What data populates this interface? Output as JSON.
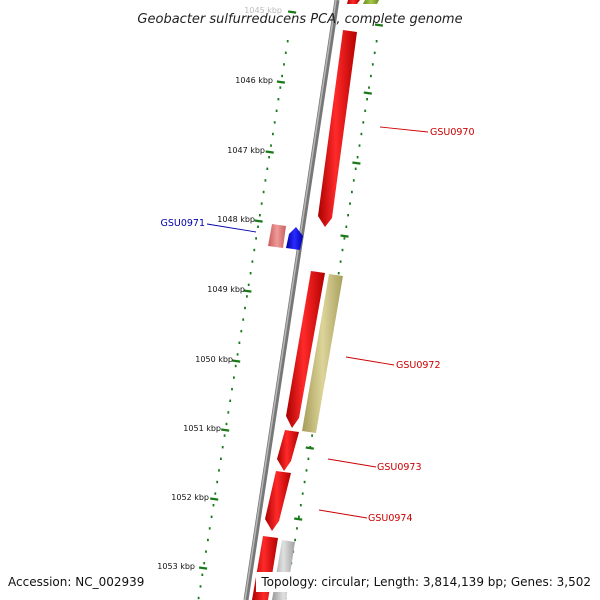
{
  "title": "Geobacter sulfurreducens PCA, complete genome",
  "footer": {
    "accession": "Accession: NC_002939",
    "summary": "Topology: circular; Length: 3,814,139 bp; Genes: 3,502"
  },
  "scale": {
    "unit_label": "kbp",
    "labels": [
      "1045 kbp",
      "1046 kbp",
      "1047 kbp",
      "1048 kbp",
      "1049 kbp",
      "1050 kbp",
      "1051 kbp",
      "1052 kbp",
      "1053 kbp"
    ]
  },
  "genes": [
    {
      "label": "GSU0970",
      "strand": "forward",
      "color": "#ee0000"
    },
    {
      "label": "GSU0971",
      "strand": "reverse",
      "color": "#0000bb"
    },
    {
      "label": "GSU0972",
      "strand": "forward",
      "color": "#ee0000"
    },
    {
      "label": "GSU0973",
      "strand": "forward",
      "color": "#ee0000"
    },
    {
      "label": "GSU0974",
      "strand": "forward",
      "color": "#ee0000"
    }
  ],
  "colors": {
    "cds": "#ee0000",
    "cds_light": "#e87878",
    "trna": "#1010ee",
    "other_feature": "#c8bf78",
    "backbone": "#888888",
    "tick": "#1a7a1a",
    "label_forward": "#cc0000",
    "label_reverse": "#0000aa"
  }
}
